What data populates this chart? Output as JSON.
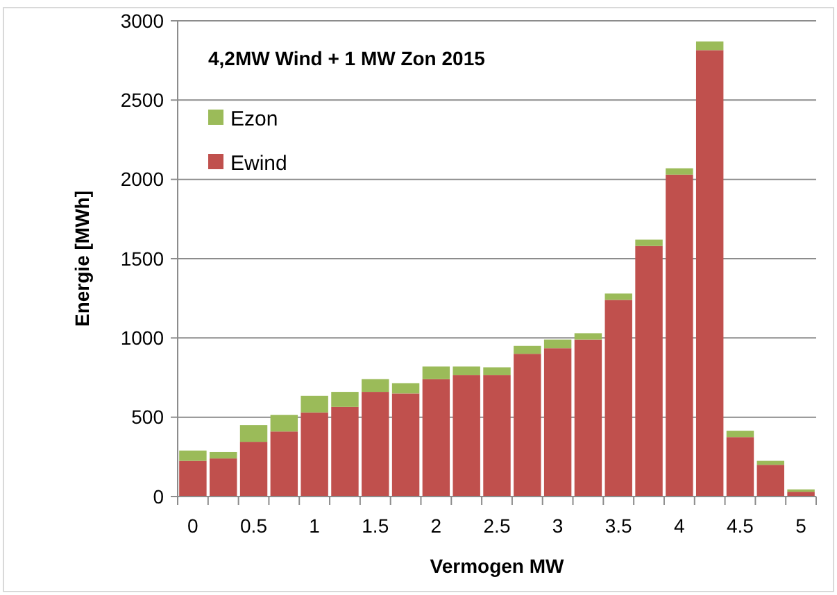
{
  "chart_data": {
    "type": "bar",
    "title": "4,2MW Wind + 1 MW Zon 2015",
    "xlabel": "Vermogen MW",
    "ylabel": "Energie [MWh]",
    "categories": [
      "0",
      null,
      "0.5",
      null,
      "1",
      null,
      "1.5",
      null,
      "2",
      null,
      "2.5",
      null,
      "3",
      null,
      "3.5",
      null,
      "4",
      null,
      "4.5",
      null,
      "5"
    ],
    "series": [
      {
        "name": "Ewind",
        "color": "#c0504d",
        "values": [
          225,
          240,
          345,
          410,
          530,
          565,
          660,
          650,
          740,
          765,
          765,
          900,
          935,
          990,
          1240,
          1580,
          2030,
          2815,
          375,
          200,
          30
        ]
      },
      {
        "name": "Ezon",
        "color": "#9bbb59",
        "values": [
          65,
          40,
          105,
          105,
          105,
          95,
          80,
          65,
          80,
          55,
          50,
          50,
          55,
          40,
          40,
          40,
          40,
          55,
          40,
          25,
          15
        ]
      }
    ],
    "stacked": true,
    "ylim": [
      0,
      3000
    ],
    "yticks": [
      0,
      500,
      1000,
      1500,
      2000,
      2500,
      3000
    ],
    "grid": "y",
    "legend": "top left"
  }
}
